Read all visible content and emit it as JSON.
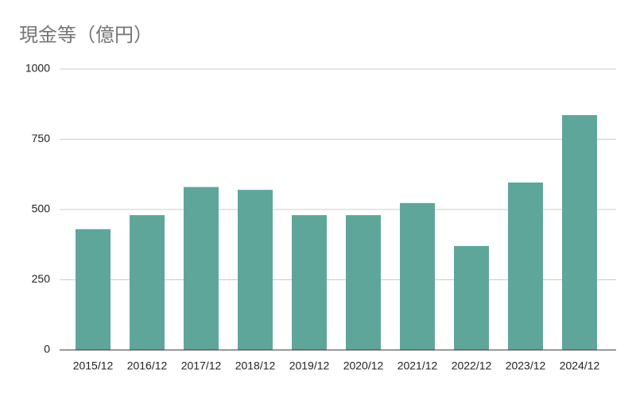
{
  "chart_data": {
    "type": "bar",
    "title": "現金等（億円）",
    "categories": [
      "2015/12",
      "2016/12",
      "2017/12",
      "2018/12",
      "2019/12",
      "2020/12",
      "2021/12",
      "2022/12",
      "2023/12",
      "2024/12"
    ],
    "values": [
      430,
      480,
      580,
      570,
      480,
      480,
      523,
      370,
      596,
      836
    ],
    "color": "#5fa69a",
    "ylim": [
      0,
      1000
    ],
    "yticks": [
      0,
      250,
      500,
      750,
      1000
    ],
    "grid": true
  }
}
